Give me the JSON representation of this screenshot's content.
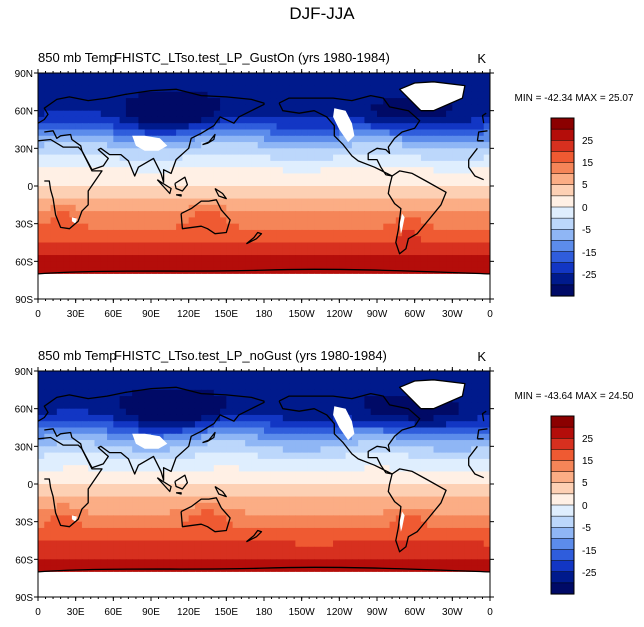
{
  "title": "DJF-JJA",
  "chart_data": [
    {
      "type": "heatmap",
      "left_title": "850 mb Temp",
      "center_title": "FHISTC_LTso.test_LP_GustOn (yrs 1980-1984)",
      "units": "K",
      "stats": {
        "min_label": "MIN =",
        "min": "-42.34",
        "max_label": "MAX =",
        "max": "25.07"
      },
      "x_ticks": [
        "0",
        "30E",
        "60E",
        "90E",
        "120E",
        "150E",
        "180",
        "150W",
        "120W",
        "90W",
        "60W",
        "30W",
        "0"
      ],
      "y_ticks": [
        "90N",
        "60N",
        "30N",
        "0",
        "30S",
        "60S",
        "90S"
      ],
      "colorbar_labels": [
        "25",
        "15",
        "5",
        "0",
        "-5",
        "-15",
        "-25"
      ]
    },
    {
      "type": "heatmap",
      "left_title": "850 mb Temp",
      "center_title": "FHISTC_LTso.test_LP_noGust (yrs 1980-1984)",
      "units": "K",
      "stats": {
        "min_label": "MIN =",
        "min": "-43.64",
        "max_label": "MAX =",
        "max": "24.50"
      },
      "x_ticks": [
        "0",
        "30E",
        "60E",
        "90E",
        "120E",
        "150E",
        "180",
        "150W",
        "120W",
        "90W",
        "60W",
        "30W",
        "0"
      ],
      "y_ticks": [
        "90N",
        "60N",
        "30N",
        "0",
        "30S",
        "60S",
        "90S"
      ],
      "colorbar_labels": [
        "25",
        "15",
        "5",
        "0",
        "-5",
        "-15",
        "-25"
      ]
    }
  ],
  "colorbar_colors": [
    "#8b0000",
    "#b40d0a",
    "#d7301f",
    "#ef5a32",
    "#f58558",
    "#fbad85",
    "#fdd0b4",
    "#fff0e5",
    "#dfeefe",
    "#bcd7fb",
    "#8fb6f5",
    "#5c8ceb",
    "#2f5ddc",
    "#1236c4",
    "#001a8c",
    "#000a66"
  ]
}
